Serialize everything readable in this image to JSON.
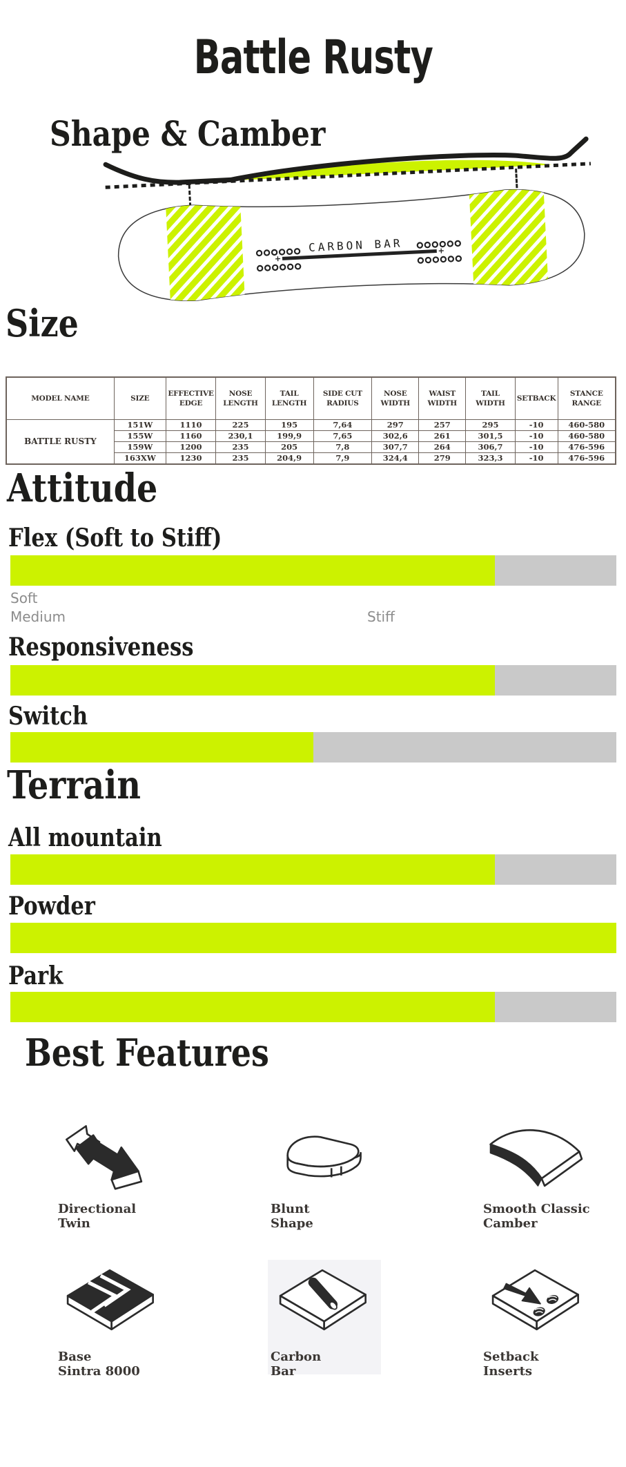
{
  "page": {
    "title": "Battle Rusty"
  },
  "shape_camber": {
    "heading": "Shape & Camber",
    "board_label": "CARBON BAR"
  },
  "size": {
    "heading": "Size",
    "table": {
      "headers": [
        "MODEL NAME",
        "SIZE",
        "EFFECTIVE EDGE",
        "NOSE LENGTH",
        "TAIL LENGTH",
        "SIDE CUT RADIUS",
        "NOSE WIDTH",
        "WAIST WIDTH",
        "TAIL WIDTH",
        "SETBACK",
        "STANCE RANGE"
      ],
      "model_name": "BATTLE RUSTY",
      "rows": [
        [
          "151W",
          "1110",
          "225",
          "195",
          "7,64",
          "297",
          "257",
          "295",
          "-10",
          "460-580"
        ],
        [
          "155W",
          "1160",
          "230,1",
          "199,9",
          "7,65",
          "302,6",
          "261",
          "301,5",
          "-10",
          "460-580"
        ],
        [
          "159W",
          "1200",
          "235",
          "205",
          "7,8",
          "307,7",
          "264",
          "306,7",
          "-10",
          "476-596"
        ],
        [
          "163XW",
          "1230",
          "235",
          "204,9",
          "7,9",
          "324,4",
          "279",
          "323,3",
          "-10",
          "476-596"
        ]
      ]
    }
  },
  "attitude": {
    "heading": "Attitude",
    "bars": [
      {
        "label": "Flex (Soft to Stiff)",
        "percent": 80
      },
      {
        "label": "Responsiveness",
        "percent": 80
      },
      {
        "label": "Switch",
        "percent": 50
      }
    ],
    "flex_scale": {
      "soft": "Soft",
      "medium": "Medium",
      "stiff": "Stiff"
    }
  },
  "terrain": {
    "heading": "Terrain",
    "bars": [
      {
        "label": "All mountain",
        "percent": 80
      },
      {
        "label": "Powder",
        "percent": 100
      },
      {
        "label": "Park",
        "percent": 80
      }
    ]
  },
  "features": {
    "heading": "Best Features",
    "items": [
      {
        "line1": "Directional",
        "line2": "Twin"
      },
      {
        "line1": "Blunt",
        "line2": "Shape"
      },
      {
        "line1": "Smooth Classic",
        "line2": "Camber"
      },
      {
        "line1": "Base",
        "line2": "Sintra 8000"
      },
      {
        "line1": "Carbon",
        "line2": "Bar"
      },
      {
        "line1": "Setback",
        "line2": "Inserts"
      }
    ]
  },
  "colors": {
    "lime": "#ccf200",
    "track_gray": "#c9c9c9",
    "ink": "#1d1d1b",
    "muted_gray": "#8c8c8c",
    "table_border": "#6d635c",
    "carbon_tile_bg": "#f3f3f6"
  }
}
